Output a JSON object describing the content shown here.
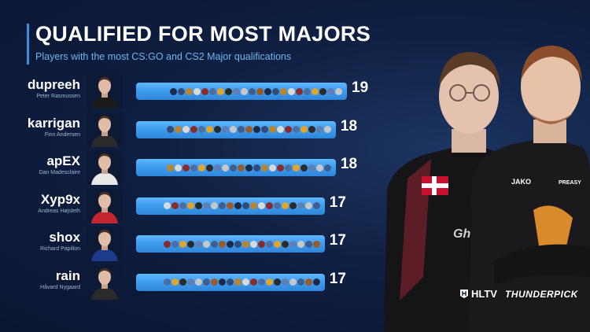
{
  "header": {
    "title": "QUALIFIED FOR MOST MAJORS",
    "subtitle": "Players with the most CS:GO and CS2 Major qualifications"
  },
  "colors": {
    "background": "#0f2043",
    "accent": "#3a8fe0",
    "bar": "#45a6f5",
    "subtitle": "#6fb4f0"
  },
  "chart_data": {
    "type": "bar",
    "orientation": "horizontal",
    "title": "QUALIFIED FOR MOST MAJORS",
    "subtitle": "Players with the most CS:GO and CS2 Major qualifications",
    "categories": [
      "dupreeh",
      "karrigan",
      "apEX",
      "Xyp9x",
      "shox",
      "rain"
    ],
    "real_names": [
      "Peter Rasmussen",
      "Finn Andersen",
      "Dan Madesclaire",
      "Andreas Højsleth",
      "Richard Papillon",
      "Håvard Nygaard"
    ],
    "values": [
      19,
      18,
      18,
      17,
      17,
      17
    ],
    "data_labels": [
      "19",
      "18",
      "18",
      "17",
      "17",
      "17"
    ],
    "xlim": [
      0,
      19
    ],
    "grid": false,
    "legend": "none"
  },
  "players": [
    {
      "nick": "dupreeh",
      "name": "Peter Rasmussen",
      "count": "19",
      "avatar_icon": "player-avatar-icon",
      "jersey": "#1b1b1b"
    },
    {
      "nick": "karrigan",
      "name": "Finn Andersen",
      "count": "18",
      "avatar_icon": "player-avatar-icon",
      "jersey": "#2a2a2a"
    },
    {
      "nick": "apEX",
      "name": "Dan Madesclaire",
      "count": "18",
      "avatar_icon": "player-avatar-icon",
      "jersey": "#e8e8e8"
    },
    {
      "nick": "Xyp9x",
      "name": "Andreas Højsleth",
      "count": "17",
      "avatar_icon": "player-avatar-icon",
      "jersey": "#c3262e"
    },
    {
      "nick": "shox",
      "name": "Richard Papillon",
      "count": "17",
      "avatar_icon": "player-avatar-icon",
      "jersey": "#1d3b8c"
    },
    {
      "nick": "rain",
      "name": "Håvard Nygaard",
      "count": "17",
      "avatar_icon": "player-avatar-icon",
      "jersey": "#2a2a2a"
    }
  ],
  "major_icon_colors": [
    "#1b2a48",
    "#2f4c7a",
    "#b8862f",
    "#d9d9d9",
    "#8a2b2b",
    "#4a6fa5",
    "#e0a52b",
    "#2a2a2a",
    "#5d7fb5",
    "#c7c7c7",
    "#3d5e8e",
    "#9a5b2a"
  ],
  "sponsors": {
    "hltv": "HLTV",
    "thunderpick": "THUNDERPICK"
  }
}
